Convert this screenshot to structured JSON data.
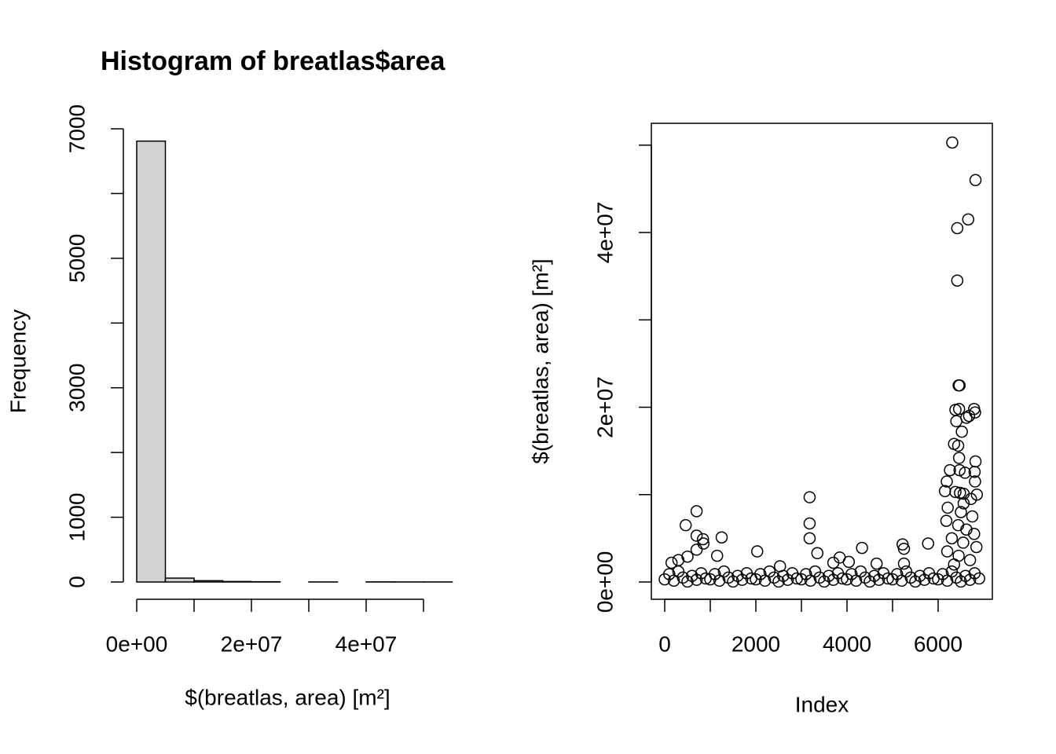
{
  "chart_data": [
    {
      "type": "histogram",
      "title": "Histogram of breatlas$area",
      "x_label": "$(breatlas, area) [m²]",
      "y_label": "Frequency",
      "bins": [
        0,
        5000000,
        10000000,
        15000000,
        20000000,
        25000000,
        30000000,
        35000000,
        40000000,
        45000000,
        50000000,
        55000000
      ],
      "values": [
        6810,
        60,
        20,
        8,
        4,
        0,
        1,
        0,
        2,
        1,
        1
      ],
      "color": "#d3d3d3",
      "xlim": [
        0,
        55000000
      ],
      "ylim": [
        0,
        7000
      ],
      "xticks": [
        {
          "value": 0,
          "label": "0e+00"
        },
        {
          "value": 20000000,
          "label": "2e+07"
        },
        {
          "value": 40000000,
          "label": "4e+07"
        }
      ],
      "xminor_ticks": [
        10000000,
        30000000,
        50000000
      ],
      "yticks": [
        0,
        1000,
        3000,
        5000,
        7000
      ],
      "yminor_ticks": [
        2000,
        4000,
        6000
      ]
    },
    {
      "type": "scatter",
      "x_label": "Index",
      "y_label": "$(breatlas, area) [m²]",
      "x": [
        0,
        100,
        200,
        300,
        400,
        500,
        600,
        700,
        800,
        900,
        1000,
        1100,
        1200,
        1300,
        1400,
        1500,
        1600,
        1700,
        1800,
        1900,
        2000,
        2100,
        2200,
        2300,
        2400,
        2500,
        2600,
        2700,
        2800,
        2900,
        3000,
        3100,
        3200,
        3300,
        3400,
        3500,
        3600,
        3700,
        3800,
        3900,
        4000,
        4100,
        4200,
        4300,
        4400,
        4500,
        4600,
        4700,
        4800,
        4900,
        5000,
        5100,
        5200,
        5300,
        5400,
        5500,
        5600,
        5700,
        5800,
        5900,
        6000,
        6100,
        6200,
        6300,
        6400,
        6500,
        6600,
        6700,
        6800,
        6900,
        6310,
        6820,
        6660,
        6420,
        6420,
        6450,
        6470,
        6380,
        6460,
        6790,
        6810,
        6680,
        6620,
        6400,
        6520,
        6350,
        6440,
        6460,
        6820,
        6260,
        6470,
        6590,
        6800,
        6190,
        6810,
        6150,
        6380,
        6480,
        6560,
        6850,
        6720,
        6560,
        6210,
        6500,
        6750,
        6180,
        6440,
        6620,
        6790,
        6300,
        6550,
        6840,
        6200,
        6450,
        6700,
        6350,
        700,
        460,
        700,
        840,
        1250,
        3180,
        3180,
        3180,
        2030,
        4330,
        3350,
        5220,
        5250,
        5780,
        700,
        850,
        1150,
        500,
        300,
        150,
        3840,
        4040,
        4650,
        2530,
        3700,
        5250
      ],
      "values": [
        300000,
        900000,
        150000,
        1200000,
        500000,
        50000,
        700000,
        250000,
        1000000,
        400000,
        300000,
        900000,
        150000,
        1200000,
        500000,
        50000,
        700000,
        250000,
        1000000,
        400000,
        300000,
        900000,
        150000,
        1200000,
        500000,
        50000,
        700000,
        250000,
        1000000,
        400000,
        300000,
        900000,
        150000,
        1200000,
        500000,
        50000,
        700000,
        250000,
        1000000,
        400000,
        300000,
        900000,
        150000,
        1200000,
        500000,
        50000,
        700000,
        250000,
        1000000,
        400000,
        300000,
        900000,
        150000,
        1200000,
        500000,
        50000,
        700000,
        250000,
        1000000,
        400000,
        300000,
        900000,
        150000,
        1200000,
        500000,
        50000,
        700000,
        250000,
        1000000,
        400000,
        50300000,
        46000000,
        41500000,
        40500000,
        34500000,
        22500000,
        22500000,
        19700000,
        19800000,
        19800000,
        19400000,
        19000000,
        18800000,
        18400000,
        17200000,
        15800000,
        15600000,
        14200000,
        13800000,
        12800000,
        12800000,
        12500000,
        12600000,
        11500000,
        11500000,
        10400000,
        10300000,
        10200000,
        10100000,
        10000000,
        9500000,
        9000000,
        8500000,
        8000000,
        7500000,
        7000000,
        6500000,
        6000000,
        5500000,
        5000000,
        4500000,
        4000000,
        3500000,
        3000000,
        2500000,
        2000000,
        8100000,
        6500000,
        5300000,
        4900000,
        5100000,
        9700000,
        6700000,
        5000000,
        3500000,
        3900000,
        3300000,
        4300000,
        3800000,
        4400000,
        3700000,
        4400000,
        3000000,
        2900000,
        2500000,
        2200000,
        2800000,
        2300000,
        2100000,
        1800000,
        2200000,
        2100000
      ],
      "xlim": [
        -293,
        7190
      ],
      "ylim": [
        -1980000,
        52500000
      ],
      "xticks": [
        0,
        2000,
        4000,
        6000
      ],
      "xminor_ticks": [
        1000,
        3000,
        5000
      ],
      "yticks": [
        {
          "value": 0,
          "label": "0e+00"
        },
        {
          "value": 20000000,
          "label": "2e+07"
        },
        {
          "value": 40000000,
          "label": "4e+07"
        }
      ],
      "yminor_ticks": [
        10000000,
        30000000,
        50000000
      ]
    }
  ]
}
